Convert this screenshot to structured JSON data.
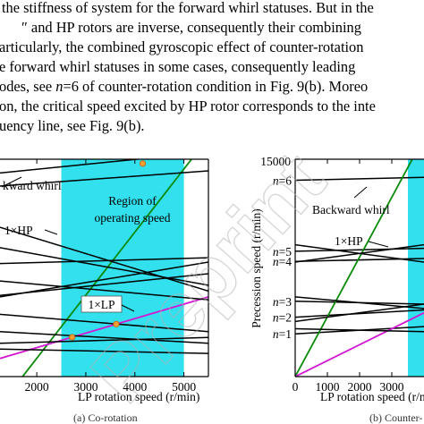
{
  "paragraph": {
    "lines": [
      {
        "pre": "the stiffness of system for the forward whirl statuses. But in the",
        "ital": "",
        "post": ""
      },
      {
        "pre": "″ and HP rotors are inverse, consequently their combining",
        "ital": "",
        "post": ""
      },
      {
        "pre": "articularly, the combined gyroscopic effect of counter-rotation",
        "ital": "",
        "post": ""
      },
      {
        "pre": "e forward whirl statuses in some cases, consequently leading",
        "ital": "",
        "post": ""
      },
      {
        "pre": "odes, see ",
        "ital": "n",
        "post": "=6 of counter-rotation condition in Fig. 9(b). Moreo"
      },
      {
        "pre": "on, the critical speed excited by HP rotor corresponds to the inte",
        "ital": "",
        "post": ""
      },
      {
        "pre": "uency line, see Fig. 9(b).",
        "ital": "",
        "post": ""
      }
    ]
  },
  "left_chart": {
    "annotations": {
      "backward_whirl": "kward whirl",
      "hp_label": "1×HP",
      "region_label_1": "Region of",
      "region_label_2": "operating speed",
      "lp_label": "1×LP"
    },
    "tick_labels": [
      "2000",
      "3000",
      "4000",
      "5000"
    ],
    "xlabel": "LP rotation speed (r/min)",
    "caption": "(a) Co-rotation"
  },
  "right_chart": {
    "ytick_top": "15000",
    "ylabel": "Precession speed (r/min)",
    "mode_labels": [
      "n=6",
      "n=5",
      "n=4",
      "n=3",
      "n=2",
      "n=1"
    ],
    "annotations": {
      "backward_whirl": "Backward whirl",
      "hp_label": "1×HP"
    },
    "tick_labels": [
      "0",
      "1000",
      "2000",
      "3000"
    ],
    "xlabel": "LP rotation speed (r/min",
    "caption": "(b) Counter-"
  },
  "chart_data": [
    {
      "type": "line",
      "title": "",
      "xlabel": "LP rotation speed (r/min)",
      "ylabel": "",
      "xlim": [
        1250,
        5500
      ],
      "ylim": [
        0,
        15000
      ],
      "x_ticks": [
        2000,
        3000,
        4000,
        5000
      ],
      "shaded_region_x": [
        2500,
        5000
      ],
      "series": [
        {
          "name": "1×HP",
          "color": "#0a8a0a",
          "x": [
            1250,
            5500
          ],
          "y": [
            -2000,
            16500
          ]
        },
        {
          "name": "1×LP",
          "color": "#d218d2",
          "x": [
            1250,
            5500
          ],
          "y": [
            1250,
            5500
          ]
        },
        {
          "name": "",
          "color": "#000000",
          "x": [
            1250,
            5500
          ],
          "y": [
            14050,
            15500
          ]
        },
        {
          "name": "",
          "color": "#000000",
          "x": [
            1250,
            5500
          ],
          "y": [
            13150,
            14200
          ]
        },
        {
          "name": "",
          "color": "#000000",
          "x": [
            1250,
            5500
          ],
          "y": [
            10300,
            5900
          ]
        },
        {
          "name": "",
          "color": "#000000",
          "x": [
            1250,
            5500
          ],
          "y": [
            8900,
            6300
          ]
        },
        {
          "name": "",
          "color": "#000000",
          "x": [
            1250,
            5500
          ],
          "y": [
            7800,
            8200
          ]
        },
        {
          "name": "",
          "color": "#000000",
          "x": [
            1250,
            5500
          ],
          "y": [
            5500,
            7900
          ]
        },
        {
          "name": "",
          "color": "#000000",
          "x": [
            1250,
            5500
          ],
          "y": [
            6600,
            5300
          ]
        },
        {
          "name": "",
          "color": "#000000",
          "x": [
            1250,
            5500
          ],
          "y": [
            5600,
            7100
          ]
        },
        {
          "name": "",
          "color": "#000000",
          "x": [
            1250,
            5500
          ],
          "y": [
            4300,
            3100
          ]
        },
        {
          "name": "",
          "color": "#000000",
          "x": [
            1250,
            5500
          ],
          "y": [
            3100,
            2300
          ]
        },
        {
          "name": "",
          "color": "#000000",
          "x": [
            1250,
            5500
          ],
          "y": [
            2300,
            2700
          ]
        },
        {
          "name": "",
          "color": "#000000",
          "x": [
            1250,
            5500
          ],
          "y": [
            1900,
            1600
          ]
        }
      ],
      "markers": [
        {
          "x": 4160,
          "y": 14700
        },
        {
          "x": 3620,
          "y": 3620
        },
        {
          "x": 2720,
          "y": 2720
        }
      ]
    },
    {
      "type": "line",
      "title": "",
      "xlabel": "LP rotation speed (r/min",
      "ylabel": "Precession speed (r/min)",
      "xlim": [
        0,
        4000
      ],
      "ylim": [
        0,
        15000
      ],
      "x_ticks": [
        0,
        1000,
        2000,
        3000
      ],
      "y_ticks": [
        15000
      ],
      "shaded_region_x": [
        3500,
        4000
      ],
      "mode_lines": [
        {
          "label": "n=6",
          "x": [
            0,
            4000
          ],
          "y": [
            13550,
            13750
          ]
        },
        {
          "label": "n=5",
          "x": [
            0,
            4000
          ],
          "y": [
            8650,
            8850
          ]
        },
        {
          "label": "n=4",
          "x": [
            0,
            4000
          ],
          "y": [
            7950,
            8150
          ]
        },
        {
          "label": "n=3",
          "x": [
            0,
            4000
          ],
          "y": [
            5200,
            5000
          ]
        },
        {
          "label": "n=2",
          "x": [
            0,
            4000
          ],
          "y": [
            4100,
            4600
          ]
        },
        {
          "label": "n=1",
          "x": [
            0,
            4000
          ],
          "y": [
            2950,
            3450
          ]
        }
      ],
      "series": [
        {
          "name": "1×HP",
          "color": "#0a8a0a",
          "x": [
            0,
            4000
          ],
          "y": [
            0,
            16500
          ]
        },
        {
          "name": "",
          "color": "#d218d2",
          "x": [
            0,
            4000
          ],
          "y": [
            0,
            4400
          ]
        },
        {
          "name": "",
          "color": "#000000",
          "x": [
            0,
            4000
          ],
          "y": [
            9100,
            7900
          ]
        },
        {
          "name": "",
          "color": "#000000",
          "x": [
            0,
            4000
          ],
          "y": [
            7900,
            9100
          ]
        },
        {
          "name": "",
          "color": "#000000",
          "x": [
            0,
            4000
          ],
          "y": [
            5500,
            4700
          ]
        },
        {
          "name": "",
          "color": "#000000",
          "x": [
            0,
            4000
          ],
          "y": [
            3800,
            5000
          ]
        },
        {
          "name": "",
          "color": "#000000",
          "x": [
            0,
            4000
          ],
          "y": [
            3300,
            3100
          ]
        }
      ]
    }
  ],
  "watermark": "Preprint"
}
